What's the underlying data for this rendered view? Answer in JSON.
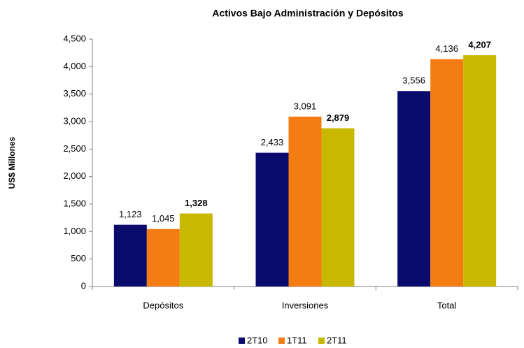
{
  "chart_data": {
    "type": "bar",
    "title": "Activos Bajo Administración y Depósitos",
    "y_label": "US$ Millones",
    "categories": [
      "Depósitos",
      "Inversiones",
      "Total"
    ],
    "series": [
      {
        "name": "2T10",
        "color": "#0b0b6e",
        "values": [
          1123,
          2433,
          3556
        ],
        "value_labels": [
          "1,123",
          "2,433",
          "3,556"
        ]
      },
      {
        "name": "1T11",
        "color": "#f47c13",
        "values": [
          1045,
          3091,
          4136
        ],
        "value_labels": [
          "1,045",
          "3,091",
          "4,136"
        ]
      },
      {
        "name": "2T11",
        "color": "#c9b800",
        "values": [
          1328,
          2879,
          4207
        ],
        "value_labels": [
          "1,328",
          "2,879",
          "4,207"
        ]
      }
    ],
    "ylim": [
      0,
      4500
    ],
    "yticks": [
      0,
      500,
      {
        "value": 1000,
        "label": "1,000"
      },
      {
        "value": 1500,
        "label": "1,500"
      },
      {
        "value": 2000,
        "label": "2,000"
      },
      {
        "value": 2500,
        "label": "2,500"
      },
      {
        "value": 3000,
        "label": "3,000"
      },
      {
        "value": 3500,
        "label": "3,500"
      },
      {
        "value": 4000,
        "label": "4,000"
      },
      {
        "value": 4500,
        "label": "4,500"
      }
    ],
    "grid": false,
    "legend": "bottom"
  }
}
